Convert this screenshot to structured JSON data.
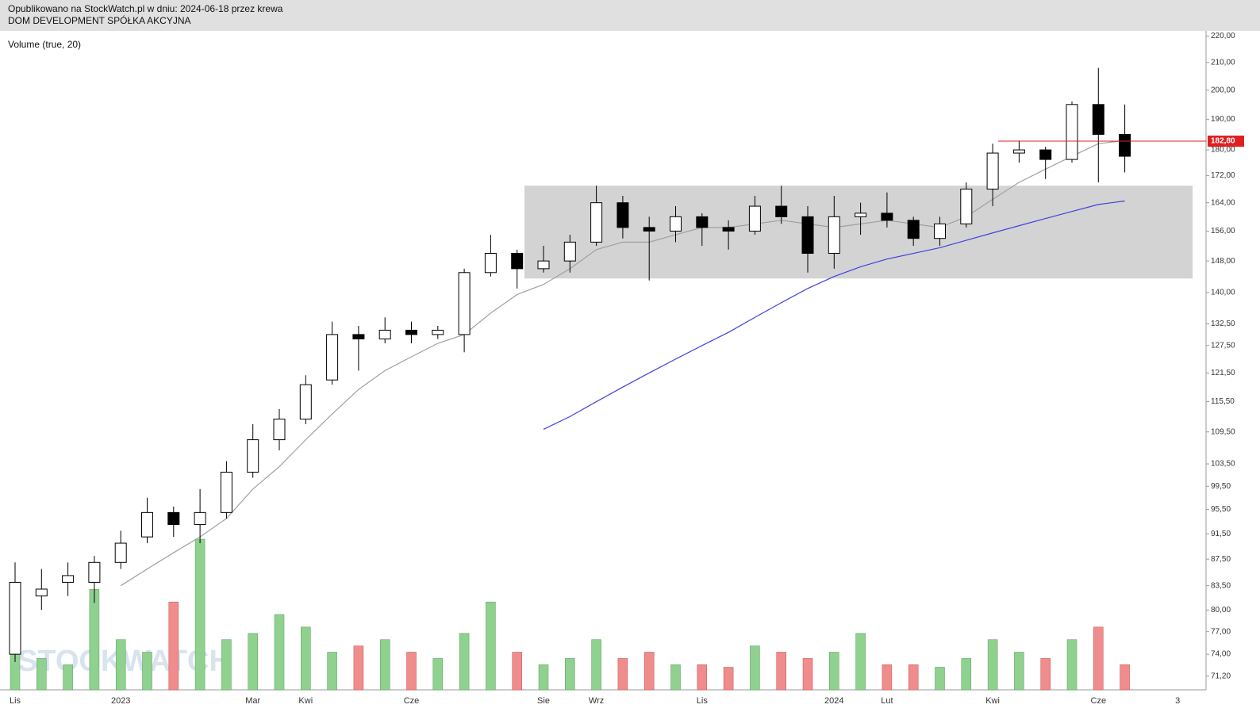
{
  "header": {
    "published": "Opublikowano na StockWatch.pl w dniu: 2024-06-18 przez krewa",
    "company": "DOM DEVELOPMENT SPÓŁKA AKCYJNA"
  },
  "chart_data": {
    "type": "candlestick",
    "indicator_label": "Volume (true, 20)",
    "watermark": "STOCKWATCH",
    "log": true,
    "categories": [
      "Lis",
      null,
      null,
      null,
      "2023",
      null,
      null,
      null,
      null,
      "Mar",
      null,
      "Kwi",
      null,
      null,
      null,
      "Cze",
      null,
      null,
      null,
      null,
      "Sie",
      null,
      "Wrz",
      null,
      null,
      null,
      "Lis",
      null,
      null,
      null,
      null,
      "2024",
      null,
      "Lut",
      null,
      null,
      null,
      "Kwi",
      null,
      null,
      null,
      "Cze",
      null,
      null,
      "3"
    ],
    "open": [
      74,
      82,
      84,
      84,
      87,
      91,
      95,
      93,
      95,
      102,
      108,
      112,
      120,
      130,
      129,
      131,
      130,
      130,
      145,
      150,
      146,
      148,
      153,
      164,
      157,
      156,
      160,
      157,
      156,
      163,
      160,
      150,
      160,
      161,
      159,
      154,
      158,
      168,
      179,
      180,
      177,
      195,
      185,
      null,
      null
    ],
    "high": [
      87,
      86,
      87,
      88,
      92,
      97.5,
      96,
      99,
      104,
      111,
      114,
      121,
      133,
      132,
      134,
      133,
      132,
      146,
      155,
      151,
      152,
      155,
      169,
      166,
      160,
      163,
      161,
      159,
      166,
      169,
      163,
      166,
      164,
      167,
      160,
      160,
      170,
      182,
      183,
      181,
      196,
      208,
      195,
      null,
      null
    ],
    "low": [
      73,
      80,
      82,
      81,
      86,
      90,
      91,
      90,
      94,
      101,
      106,
      111,
      119,
      122,
      128,
      128,
      129,
      126,
      144,
      141,
      145,
      145,
      152,
      154,
      143,
      153,
      152,
      151,
      155,
      158,
      145,
      146,
      155,
      157,
      152,
      152,
      157,
      163,
      176,
      171,
      176,
      170,
      173,
      null,
      null
    ],
    "close": [
      84,
      83,
      85,
      87,
      90,
      95,
      93,
      95,
      102,
      108,
      112,
      119,
      130,
      129,
      131,
      130,
      131,
      145,
      150,
      146,
      148,
      153,
      164,
      157,
      156,
      160,
      157,
      156,
      163,
      160,
      150,
      160,
      161,
      159,
      154,
      158,
      168,
      179,
      180,
      177,
      195,
      185,
      178,
      null,
      null
    ],
    "volume": [
      30,
      25,
      20,
      80,
      40,
      30,
      70,
      120,
      40,
      45,
      60,
      50,
      30,
      35,
      40,
      30,
      25,
      45,
      70,
      30,
      20,
      25,
      40,
      25,
      30,
      20,
      20,
      18,
      35,
      30,
      25,
      30,
      45,
      20,
      20,
      18,
      25,
      40,
      30,
      25,
      40,
      50,
      20,
      null,
      null
    ],
    "series": [
      {
        "color": "#a0a0a0",
        "values": [
          null,
          null,
          null,
          null,
          83.5,
          86,
          88.5,
          91,
          94,
          99,
          103,
          108,
          113,
          118,
          122,
          125,
          128,
          130,
          135,
          139.5,
          142,
          146,
          151,
          153,
          153,
          155,
          157,
          157,
          158,
          159,
          158,
          157,
          158,
          159,
          158,
          157,
          160,
          165,
          170,
          174,
          178,
          182,
          183,
          null,
          null
        ]
      },
      {
        "color": "#4040e0",
        "values": [
          null,
          null,
          null,
          null,
          null,
          null,
          null,
          null,
          null,
          null,
          null,
          null,
          null,
          null,
          null,
          null,
          null,
          null,
          null,
          null,
          110,
          112.5,
          115.5,
          118.5,
          121.5,
          124.5,
          127.5,
          130.5,
          134,
          137.5,
          141,
          144,
          146.5,
          148.5,
          150,
          151.5,
          153.5,
          155.5,
          157.5,
          159.5,
          161.5,
          163.5,
          164.5,
          null,
          null
        ]
      }
    ],
    "up_color": "#ffffff",
    "down_color": "#000000",
    "volume_up_color": "#8fd18f",
    "volume_down_color": "#f08c8c",
    "zone": {
      "low": 143.5,
      "high": 169,
      "color": "#d3d3d3"
    },
    "ref_line": {
      "value": 182.8,
      "label": "182,80",
      "color": "#e02020"
    },
    "ylim": [
      69.5,
      222
    ],
    "yticks": [
      {
        "value": 71.2,
        "label": "71,20"
      },
      {
        "value": 74,
        "label": "74,00"
      },
      {
        "value": 77,
        "label": "77,00"
      },
      {
        "value": 80,
        "label": "80,00"
      },
      {
        "value": 83.5,
        "label": "83,50"
      },
      {
        "value": 87.5,
        "label": "87,50"
      },
      {
        "value": 91.5,
        "label": "91,50"
      },
      {
        "value": 95.5,
        "label": "95,50"
      },
      {
        "value": 99.5,
        "label": "99,50"
      },
      {
        "value": 103.5,
        "label": "103,50"
      },
      {
        "value": 109.5,
        "label": "109,50"
      },
      {
        "value": 115.5,
        "label": "115,50"
      },
      {
        "value": 121.5,
        "label": "121,50"
      },
      {
        "value": 127.5,
        "label": "127,50"
      },
      {
        "value": 132.5,
        "label": "132,50"
      },
      {
        "value": 140,
        "label": "140,00"
      },
      {
        "value": 148,
        "label": "148,00"
      },
      {
        "value": 156,
        "label": "156,00"
      },
      {
        "value": 164,
        "label": "164,00"
      },
      {
        "value": 172,
        "label": "172,00"
      },
      {
        "value": 180,
        "label": "180,00"
      },
      {
        "value": 190,
        "label": "190,00"
      },
      {
        "value": 200,
        "label": "200,00"
      },
      {
        "value": 210,
        "label": "210,00"
      },
      {
        "value": 220,
        "label": "220,00"
      }
    ]
  }
}
